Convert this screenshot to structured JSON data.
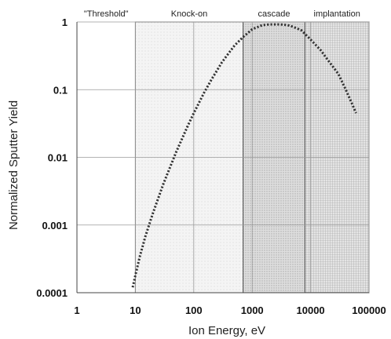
{
  "chart_data": {
    "type": "line",
    "x_scale": "log",
    "y_scale": "log",
    "xlim": [
      1,
      100000
    ],
    "ylim": [
      0.0001,
      1
    ],
    "xlabel": "Ion  Energy, eV",
    "ylabel": "Normalized Sputter Yield",
    "x_ticks": [
      "1",
      "10",
      "100",
      "1000",
      "10000",
      "100000"
    ],
    "y_ticks": [
      "0.0001",
      "0.001",
      "0.01",
      "0.1",
      "1"
    ],
    "grid": true,
    "regions": [
      {
        "label": "\"Threshold\"",
        "x_range": [
          1,
          10
        ],
        "shading": "none"
      },
      {
        "label": "Knock-on",
        "x_range": [
          10,
          700
        ],
        "shading": "light"
      },
      {
        "label": "cascade",
        "x_range": [
          700,
          8000
        ],
        "shading": "medium"
      },
      {
        "label": "implantation",
        "x_range": [
          8000,
          100000
        ],
        "shading": "crosshatch"
      }
    ],
    "series": [
      {
        "line_style": "dotted",
        "color": "#333333",
        "x": [
          9,
          10,
          12,
          15,
          20,
          30,
          50,
          80,
          100,
          150,
          200,
          300,
          400,
          500,
          700,
          1000,
          1500,
          2000,
          3000,
          4000,
          5000,
          7000,
          10000,
          15000,
          20000,
          30000,
          40000,
          50000,
          60000
        ],
        "y": [
          0.00012,
          0.00018,
          0.00035,
          0.0007,
          0.0015,
          0.004,
          0.012,
          0.03,
          0.045,
          0.09,
          0.14,
          0.25,
          0.35,
          0.45,
          0.6,
          0.78,
          0.9,
          0.92,
          0.92,
          0.9,
          0.85,
          0.75,
          0.55,
          0.38,
          0.27,
          0.17,
          0.1,
          0.065,
          0.045
        ]
      }
    ]
  }
}
